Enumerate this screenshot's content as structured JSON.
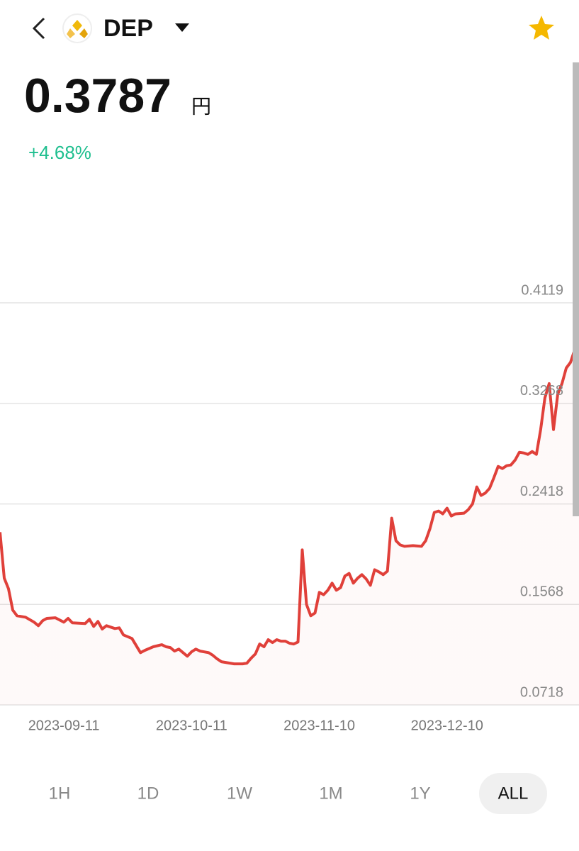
{
  "header": {
    "symbol": "DEP"
  },
  "price": {
    "value": "0.3787",
    "unit": "円",
    "change": "+4.68%"
  },
  "chart_data": {
    "type": "line",
    "x": [
      "2023-08-27",
      "2023-08-28",
      "2023-08-29",
      "2023-08-30",
      "2023-08-31",
      "2023-09-02",
      "2023-09-04",
      "2023-09-05",
      "2023-09-06",
      "2023-09-07",
      "2023-09-09",
      "2023-09-11",
      "2023-09-12",
      "2023-09-13",
      "2023-09-16",
      "2023-09-17",
      "2023-09-18",
      "2023-09-19",
      "2023-09-20",
      "2023-09-21",
      "2023-09-23",
      "2023-09-24",
      "2023-09-25",
      "2023-09-27",
      "2023-09-28",
      "2023-09-29",
      "2023-09-30",
      "2023-10-02",
      "2023-10-04",
      "2023-10-05",
      "2023-10-06",
      "2023-10-07",
      "2023-10-08",
      "2023-10-09",
      "2023-10-10",
      "2023-10-11",
      "2023-10-12",
      "2023-10-13",
      "2023-10-15",
      "2023-10-16",
      "2023-10-17",
      "2023-10-18",
      "2023-10-20",
      "2023-10-21",
      "2023-10-23",
      "2023-10-24",
      "2023-10-25",
      "2023-10-26",
      "2023-10-27",
      "2023-10-28",
      "2023-10-29",
      "2023-10-30",
      "2023-10-31",
      "2023-11-01",
      "2023-11-02",
      "2023-11-03",
      "2023-11-04",
      "2023-11-05",
      "2023-11-06",
      "2023-11-07",
      "2023-11-08",
      "2023-11-09",
      "2023-11-10",
      "2023-11-11",
      "2023-11-12",
      "2023-11-13",
      "2023-11-14",
      "2023-11-15",
      "2023-11-16",
      "2023-11-17",
      "2023-11-18",
      "2023-11-19",
      "2023-11-20",
      "2023-11-21",
      "2023-11-22",
      "2023-11-23",
      "2023-11-24",
      "2023-11-25",
      "2023-11-26",
      "2023-11-27",
      "2023-11-28",
      "2023-11-29",
      "2023-11-30",
      "2023-12-02",
      "2023-12-04",
      "2023-12-05",
      "2023-12-06",
      "2023-12-07",
      "2023-12-08",
      "2023-12-09",
      "2023-12-10",
      "2023-12-11",
      "2023-12-12",
      "2023-12-14",
      "2023-12-15",
      "2023-12-16",
      "2023-12-17",
      "2023-12-18",
      "2023-12-19",
      "2023-12-20",
      "2023-12-21",
      "2023-12-22",
      "2023-12-23",
      "2023-12-24",
      "2023-12-25",
      "2023-12-26",
      "2023-12-27",
      "2023-12-28",
      "2023-12-29",
      "2023-12-30",
      "2023-12-31",
      "2024-01-01",
      "2024-01-02",
      "2024-01-03",
      "2024-01-04",
      "2024-01-05",
      "2024-01-06",
      "2024-01-07",
      "2024-01-08",
      "2024-01-09",
      "2024-01-10"
    ],
    "series": [
      {
        "color": "#e0403a",
        "values": [
          0.2179,
          0.179,
          0.17,
          0.152,
          0.1472,
          0.146,
          0.1418,
          0.1388,
          0.143,
          0.145,
          0.1455,
          0.1418,
          0.145,
          0.1412,
          0.1406,
          0.1442,
          0.1382,
          0.1424,
          0.136,
          0.1388,
          0.1364,
          0.137,
          0.131,
          0.128,
          0.122,
          0.116,
          0.1179,
          0.121,
          0.1227,
          0.121,
          0.1203,
          0.1173,
          0.119,
          0.116,
          0.113,
          0.1167,
          0.119,
          0.1173,
          0.116,
          0.1137,
          0.1107,
          0.1083,
          0.1071,
          0.1065,
          0.1065,
          0.1071,
          0.1113,
          0.1149,
          0.1233,
          0.121,
          0.127,
          0.1245,
          0.127,
          0.1257,
          0.1257,
          0.124,
          0.1233,
          0.125,
          0.2029,
          0.1568,
          0.1472,
          0.1496,
          0.167,
          0.165,
          0.1688,
          0.1748,
          0.1688,
          0.171,
          0.1808,
          0.183,
          0.1748,
          0.179,
          0.182,
          0.1784,
          0.173,
          0.1861,
          0.1843,
          0.182,
          0.185,
          0.2298,
          0.2107,
          0.2071,
          0.2059,
          0.2065,
          0.2059,
          0.2107,
          0.2209,
          0.2346,
          0.2358,
          0.2334,
          0.2382,
          0.2316,
          0.2334,
          0.234,
          0.237,
          0.2418,
          0.2562,
          0.249,
          0.251,
          0.255,
          0.264,
          0.2735,
          0.2717,
          0.2741,
          0.2747,
          0.2789,
          0.2855,
          0.2849,
          0.2837,
          0.2861,
          0.2837,
          0.3047,
          0.3316,
          0.3436,
          0.3047,
          0.3346,
          0.3436,
          0.3567,
          0.3615,
          0.3723,
          0.3771
        ]
      }
    ],
    "xlim": [
      "2023-08-27",
      "2024-01-10"
    ],
    "xticks": [
      "2023-09-11",
      "2023-10-11",
      "2023-11-10",
      "2023-12-10"
    ],
    "ylim": [
      0.0718,
      0.4119
    ],
    "yticks": [
      0.4119,
      0.3268,
      0.2418,
      0.1568,
      0.0718
    ],
    "grid": true
  },
  "tabs": {
    "items": [
      "1H",
      "1D",
      "1W",
      "1M",
      "1Y",
      "ALL"
    ],
    "selected": 5
  }
}
